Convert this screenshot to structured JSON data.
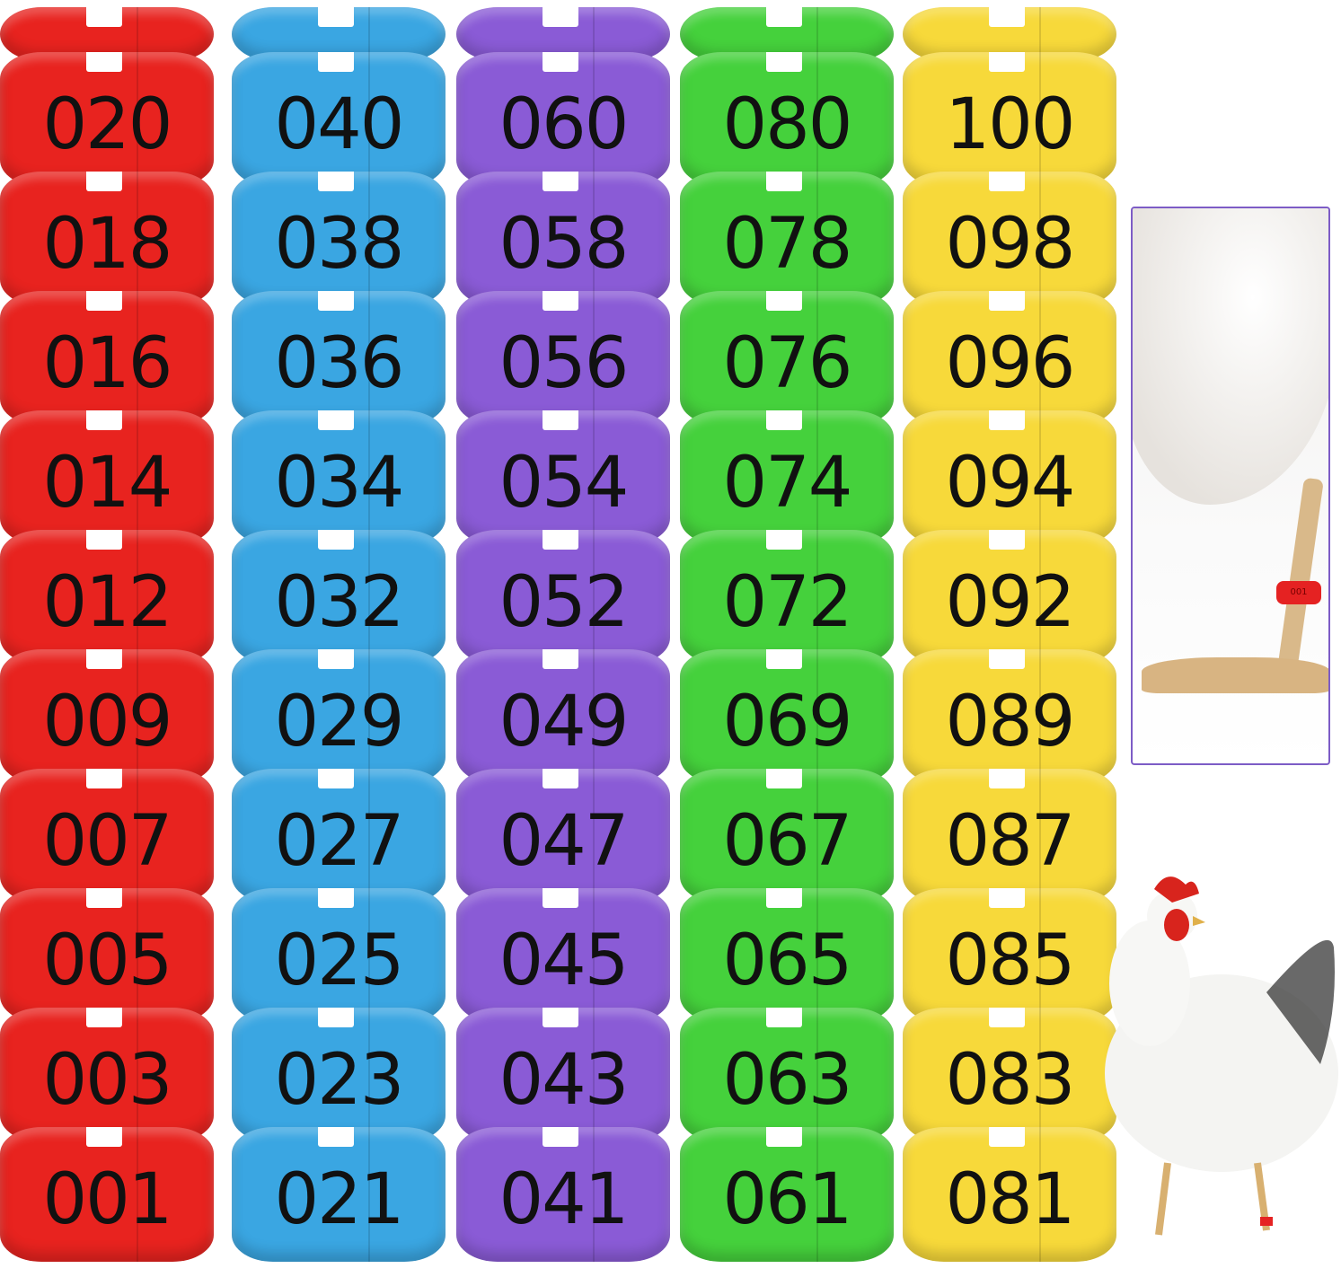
{
  "columns": [
    {
      "color": "#e8231f",
      "labels": [
        "020",
        "018",
        "016",
        "014",
        "012",
        "009",
        "007",
        "005",
        "003",
        "001"
      ]
    },
    {
      "color": "#3aa6e2",
      "labels": [
        "040",
        "038",
        "036",
        "034",
        "032",
        "029",
        "027",
        "025",
        "023",
        "021"
      ]
    },
    {
      "color": "#8a5bd6",
      "labels": [
        "060",
        "058",
        "056",
        "054",
        "052",
        "049",
        "047",
        "045",
        "043",
        "041"
      ]
    },
    {
      "color": "#45d13c",
      "labels": [
        "080",
        "078",
        "076",
        "074",
        "072",
        "069",
        "067",
        "065",
        "063",
        "061"
      ]
    },
    {
      "color": "#f7d93a",
      "labels": [
        "100",
        "098",
        "096",
        "094",
        "092",
        "089",
        "087",
        "085",
        "083",
        "081"
      ]
    }
  ],
  "inset": {
    "band_label": "001",
    "border_color": "#7d5cc6"
  }
}
